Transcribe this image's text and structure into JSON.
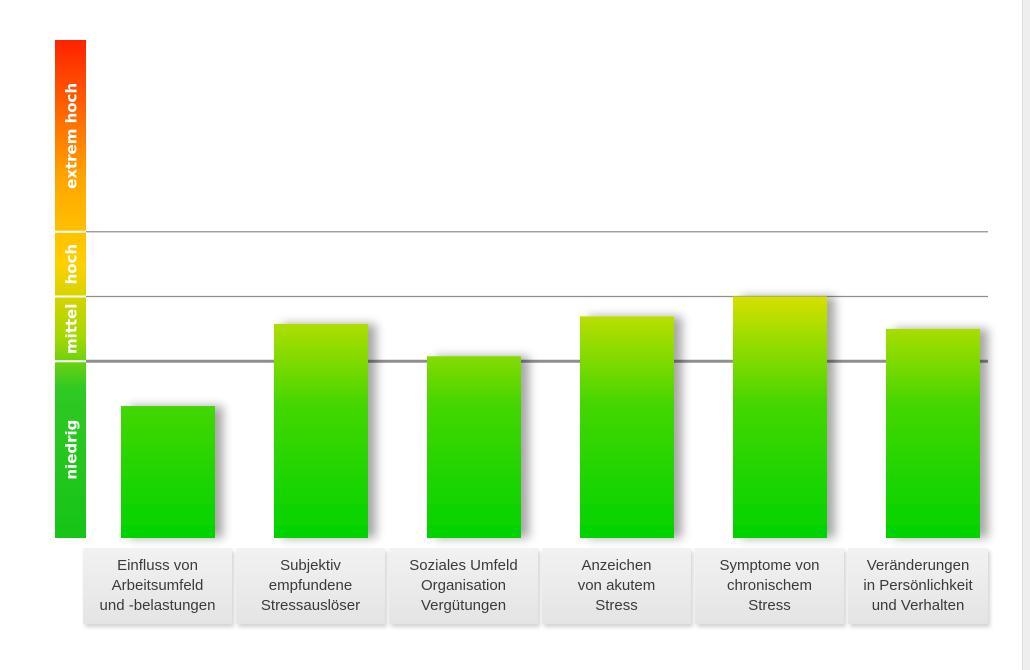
{
  "chart_data": {
    "type": "bar",
    "title": "",
    "xlabel": "",
    "ylabel": "",
    "ylim": [
      0,
      100
    ],
    "grid": "horizontal lines at band boundaries",
    "levels": [
      {
        "label": "niedrig",
        "from": 0,
        "to": 35.5
      },
      {
        "label": "mittel",
        "from": 35.5,
        "to": 48.5
      },
      {
        "label": "hoch",
        "from": 48.5,
        "to": 61.5
      },
      {
        "label": "extrem hoch",
        "from": 61.5,
        "to": 100
      }
    ],
    "categories": [
      "Einfluss von\nArbeitsumfeld\nund -belastungen",
      "Subjektiv\nempfundene\nStressauslöser",
      "Soziales Umfeld\nOrganisation\nVergütungen",
      "Anzeichen\nvon akutem\nStress",
      "Symptome von\nchronischem\nStress",
      "Veränderungen\nin Persönlichkeit\nund Verhalten"
    ],
    "values": [
      26.5,
      43,
      36.5,
      44.5,
      48.5,
      42
    ]
  },
  "colors": {
    "bar_low": "#00d400",
    "bar_high": "#d6e000",
    "scale_low": "#17c417",
    "scale_mid": "#a0d800",
    "scale_hoch": "#ffd000",
    "scale_top": "#ff2200",
    "gridline": "#8f8f8f"
  }
}
